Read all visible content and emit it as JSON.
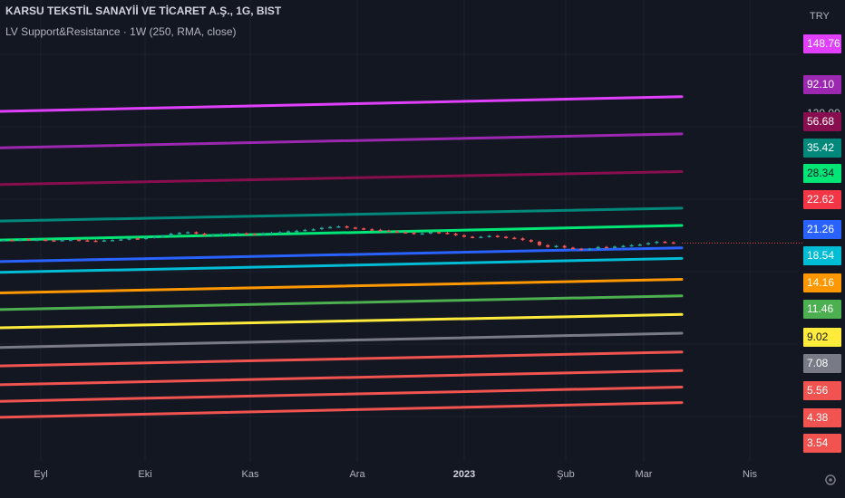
{
  "header": {
    "symbol_line": "KARSU TEKSTİL SANAYİİ VE TİCARET A.Ş., 1G, BIST",
    "indicator_line": "LV Support&Resistance · 1W (250, RMA, close)"
  },
  "price_axis": {
    "currency": "TRY",
    "partial_label": "120.00",
    "labels": [
      {
        "value": "148.76",
        "color": "#e040fb"
      },
      {
        "value": "92.10",
        "color": "#9c27b0"
      },
      {
        "value": "56.68",
        "color": "#880e4f"
      },
      {
        "value": "35.42",
        "color": "#00897b"
      },
      {
        "value": "28.34",
        "color": "#00e676"
      },
      {
        "value": "22.62",
        "color": "#f23645"
      },
      {
        "value": "21.26",
        "color": "#2962ff"
      },
      {
        "value": "18.54",
        "color": "#00bcd4"
      },
      {
        "value": "14.16",
        "color": "#ff9800"
      },
      {
        "value": "11.46",
        "color": "#4caf50"
      },
      {
        "value": "9.02",
        "color": "#ffeb3b"
      },
      {
        "value": "7.08",
        "color": "#787b86"
      },
      {
        "value": "5.56",
        "color": "#f05350"
      },
      {
        "value": "4.38",
        "color": "#f05350"
      },
      {
        "value": "3.54",
        "color": "#f05350"
      }
    ]
  },
  "time_axis": {
    "labels": [
      "Eyl",
      "Eki",
      "Kas",
      "Ara",
      "2023",
      "Şub",
      "Mar",
      "Nis"
    ],
    "bold_label": "2023"
  },
  "chart_data": {
    "type": "line",
    "scale": "log",
    "series": [
      {
        "values": [
          123,
          148.76
        ],
        "color": "#e040fb"
      },
      {
        "values": [
          77,
          92.1
        ],
        "color": "#9c27b0"
      },
      {
        "values": [
          48,
          56.68
        ],
        "color": "#880e4f"
      },
      {
        "values": [
          30,
          35.42
        ],
        "color": "#00897b"
      },
      {
        "values": [
          23.5,
          28.34
        ],
        "color": "#00e676"
      },
      {
        "values": [
          17.8,
          21.26
        ],
        "color": "#2962ff"
      },
      {
        "values": [
          15.5,
          18.54
        ],
        "color": "#00bcd4"
      },
      {
        "values": [
          11.9,
          14.16
        ],
        "color": "#ff9800"
      },
      {
        "values": [
          9.6,
          11.46
        ],
        "color": "#4caf50"
      },
      {
        "values": [
          7.6,
          9.02
        ],
        "color": "#ffeb3b"
      },
      {
        "values": [
          5.9,
          7.08
        ],
        "color": "#787b86"
      },
      {
        "values": [
          4.65,
          5.56
        ],
        "color": "#f05350"
      },
      {
        "values": [
          3.65,
          4.38
        ],
        "color": "#f05350"
      },
      {
        "values": [
          2.95,
          3.54
        ],
        "color": "#f05350"
      },
      {
        "values": [
          2.4,
          2.9
        ],
        "color": "#f05350"
      }
    ],
    "price_close": [
      23.5,
      23.4,
      23.7,
      23.5,
      23.6,
      23.4,
      23.3,
      23.5,
      23.6,
      23.4,
      23.3,
      23.2,
      23.4,
      23.5,
      23.7,
      24.0,
      23.9,
      24.2,
      24.5,
      24.8,
      25.5,
      25.8,
      26.0,
      25.5,
      25.0,
      25.2,
      25.4,
      25.5,
      25.6,
      25.4,
      25.3,
      25.6,
      25.8,
      26.0,
      26.3,
      26.5,
      26.8,
      27.0,
      27.5,
      27.8,
      28.0,
      27.6,
      27.3,
      27.0,
      26.8,
      26.5,
      26.3,
      26.0,
      25.8,
      25.5,
      25.6,
      26.0,
      25.8,
      25.5,
      25.0,
      24.5,
      24.3,
      24.5,
      24.8,
      24.5,
      24.2,
      24.0,
      23.5,
      23.0,
      22.0,
      21.5,
      21.8,
      21.3,
      21.0,
      20.8,
      21.0,
      21.5,
      21.3,
      21.6,
      21.8,
      22.0,
      22.2,
      22.6,
      23.0,
      22.8,
      22.6
    ]
  }
}
